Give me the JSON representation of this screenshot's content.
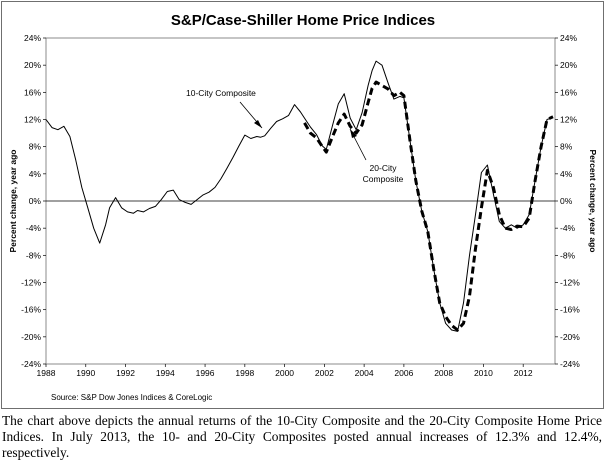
{
  "chart_data": {
    "type": "line",
    "title": "S&P/Case-Shiller Home Price Indices",
    "ylabel_left": "Percent change, year ago",
    "ylabel_right": "Percent change, year ago",
    "xlabel": "",
    "xlim": [
      1988,
      2013.6
    ],
    "ylim": [
      -24,
      24
    ],
    "x_ticks": [
      "1988",
      "1990",
      "1992",
      "1994",
      "1996",
      "1998",
      "2000",
      "2002",
      "2004",
      "2006",
      "2008",
      "2010",
      "2012"
    ],
    "y_ticks": [
      "24%",
      "20%",
      "16%",
      "12%",
      "8%",
      "4%",
      "0%",
      "-4%",
      "-8%",
      "-12%",
      "-16%",
      "-20%",
      "-24%"
    ],
    "grid": false,
    "annotations": [
      {
        "text": "10-City Composite",
        "series": "10-City Composite"
      },
      {
        "lines": [
          "20-City",
          "Composite"
        ],
        "series": "20-City Composite"
      }
    ],
    "source": "Source: S&P Dow Jones Indices & CoreLogic",
    "series": [
      {
        "name": "10-City Composite",
        "color": "#000000",
        "style": "solid",
        "x": [
          1988.0,
          1988.3,
          1988.6,
          1988.9,
          1989.2,
          1989.5,
          1989.8,
          1990.1,
          1990.4,
          1990.7,
          1991.0,
          1991.2,
          1991.5,
          1991.8,
          1992.1,
          1992.4,
          1992.6,
          1992.9,
          1993.2,
          1993.5,
          1993.8,
          1994.1,
          1994.4,
          1994.7,
          1995.0,
          1995.3,
          1995.6,
          1995.9,
          1996.2,
          1996.5,
          1996.8,
          1997.1,
          1997.4,
          1997.7,
          1998.0,
          1998.3,
          1998.6,
          1998.8,
          1999.0,
          1999.3,
          1999.6,
          1999.9,
          2000.2,
          2000.5,
          2000.8,
          2001.0,
          2001.3,
          2001.6,
          2001.9,
          2002.1,
          2002.4,
          2002.7,
          2003.0,
          2003.3,
          2003.6,
          2003.9,
          2004.2,
          2004.4,
          2004.6,
          2004.9,
          2005.2,
          2005.5,
          2005.8,
          2006.0,
          2006.3,
          2006.6,
          2006.9,
          2007.2,
          2007.5,
          2007.8,
          2008.1,
          2008.4,
          2008.7,
          2009.0,
          2009.3,
          2009.6,
          2009.9,
          2010.2,
          2010.5,
          2010.8,
          2011.1,
          2011.4,
          2011.7,
          2012.0,
          2012.3,
          2012.6,
          2012.9,
          2013.2,
          2013.5
        ],
        "y": [
          12,
          10.8,
          10.5,
          11,
          9.5,
          6,
          2,
          -1,
          -4,
          -6.2,
          -3.5,
          -1,
          0.5,
          -1,
          -1.6,
          -1.8,
          -1.4,
          -1.6,
          -1.1,
          -0.8,
          0.2,
          1.4,
          1.6,
          0.2,
          -0.2,
          -0.5,
          0.2,
          0.9,
          1.3,
          2,
          3.3,
          4.8,
          6.4,
          8.1,
          9.7,
          9.2,
          9.5,
          9.4,
          9.6,
          10.7,
          11.7,
          12.1,
          12.6,
          14.2,
          13.1,
          12.2,
          10.9,
          9.8,
          8.1,
          7.6,
          11,
          14.3,
          15.8,
          12.2,
          10.5,
          13,
          17,
          19.2,
          20.6,
          20,
          17.4,
          15,
          15.4,
          15.2,
          9,
          3,
          -1.5,
          -4.5,
          -10,
          -15,
          -18,
          -19,
          -19.2,
          -15,
          -8,
          -2,
          4.2,
          5.3,
          1,
          -3,
          -4,
          -3.5,
          -4,
          -3.5,
          -2,
          3,
          8,
          12,
          12.3
        ]
      },
      {
        "name": "20-City Composite",
        "color": "#000000",
        "style": "dashed",
        "x": [
          2001.0,
          2001.3,
          2001.6,
          2001.9,
          2002.1,
          2002.4,
          2002.7,
          2003.0,
          2003.3,
          2003.6,
          2003.9,
          2004.2,
          2004.4,
          2004.6,
          2004.9,
          2005.2,
          2005.5,
          2005.8,
          2006.0,
          2006.3,
          2006.6,
          2006.9,
          2007.2,
          2007.5,
          2007.8,
          2008.1,
          2008.4,
          2008.7,
          2009.0,
          2009.3,
          2009.6,
          2009.9,
          2010.2,
          2010.5,
          2010.8,
          2011.1,
          2011.4,
          2011.7,
          2012.0,
          2012.3,
          2012.6,
          2012.9,
          2013.2,
          2013.5
        ],
        "y": [
          11.5,
          10,
          9.3,
          8,
          7.2,
          9.4,
          11.5,
          12.8,
          11,
          10,
          11.2,
          14.5,
          16.6,
          17.5,
          17,
          16.5,
          15.5,
          16,
          15.5,
          9,
          3,
          -1.5,
          -4.5,
          -10,
          -15,
          -17,
          -18.3,
          -19,
          -18,
          -14,
          -7,
          -1,
          4.5,
          2,
          -2,
          -4,
          -4.2,
          -3.7,
          -3.8,
          -2.5,
          3,
          8,
          12,
          12.4
        ]
      }
    ]
  },
  "caption": "The chart above depicts the annual returns of the 10-City Composite and the 20-City Composite Home Price Indices. In July 2013, the 10- and 20-City Composites posted annual increases of 12.3% and 12.4%, respectively."
}
